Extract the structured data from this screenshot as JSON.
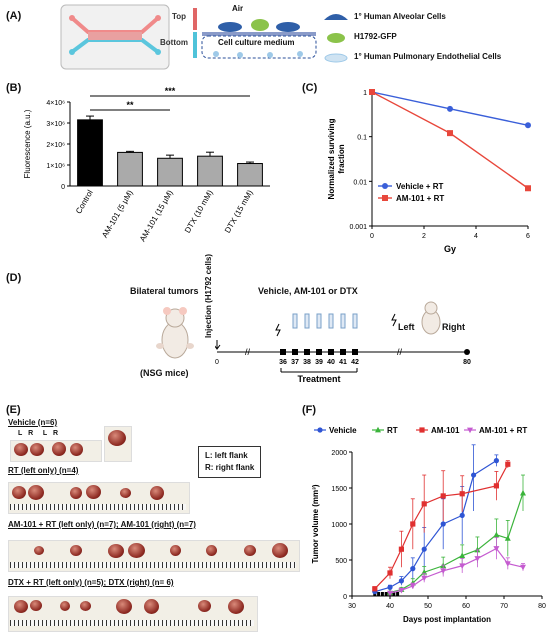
{
  "panels": {
    "A": "(A)",
    "B": "(B)",
    "C": "(C)",
    "D": "(D)",
    "E": "(E)",
    "F": "(F)"
  },
  "panelA": {
    "top": "Top",
    "bottom": "Bottom",
    "air": "Air",
    "medium": "Cell culture medium",
    "legend": [
      "1° Human Alveolar Cells",
      "H1792-GFP",
      "1° Human Pulmonary Endothelial Cells"
    ],
    "colors": {
      "top": "#e06666",
      "bottom": "#4fc3d9",
      "alveolar": "#2f5fa8",
      "gfp": "#8bc34a",
      "endo": "#9ec9e8"
    }
  },
  "chart_data": [
    {
      "id": "B",
      "type": "bar",
      "ylabel": "Fluorescence (a.u.)",
      "categories": [
        "Control",
        "AM-101 (5 μM)",
        "AM-101 (15 μM)",
        "DTX (10 mM)",
        "DTX (15 mM)"
      ],
      "values": [
        3150000,
        1600000,
        1320000,
        1420000,
        1070000
      ],
      "errors": [
        180000,
        50000,
        150000,
        190000,
        70000
      ],
      "ylim": [
        0,
        4000000
      ],
      "yticks": [
        "0",
        "1×10⁶",
        "2×10⁶",
        "3×10⁶",
        "4×10⁶"
      ],
      "significance": [
        {
          "label": "***",
          "from": 0,
          "to": 4
        },
        {
          "label": "**",
          "from": 0,
          "to": 2
        }
      ]
    },
    {
      "id": "C",
      "type": "line",
      "xlabel": "Gy",
      "ylabel": "Normalized surviving fraction",
      "yscale": "log",
      "xlim": [
        0,
        6
      ],
      "ylim": [
        0.001,
        1
      ],
      "xticks": [
        "0",
        "2",
        "4",
        "6"
      ],
      "yticks": [
        "0.001",
        "0.01",
        "0.1",
        "1"
      ],
      "x": [
        0,
        3,
        6
      ],
      "series": [
        {
          "name": "Vehicle + RT",
          "color": "#3a5fd9",
          "values": [
            1,
            0.42,
            0.18
          ]
        },
        {
          "name": "AM-101 + RT",
          "color": "#e8473b",
          "values": [
            1,
            0.12,
            0.007
          ]
        }
      ],
      "legend": "bottom-left"
    },
    {
      "id": "F",
      "type": "line",
      "xlabel": "Days post implantation",
      "ylabel": "Tumor volume (mm³)",
      "xlim": [
        30,
        80
      ],
      "ylim": [
        0,
        2000
      ],
      "xticks": [
        "30",
        "40",
        "50",
        "60",
        "70",
        "80"
      ],
      "yticks": [
        "0",
        "500",
        "1000",
        "1500",
        "2000"
      ],
      "series": [
        {
          "name": "Vehicle",
          "color": "#2f55d4",
          "marker": "circle",
          "x": [
            36,
            40,
            43,
            46,
            49,
            54,
            59,
            62,
            68
          ],
          "y": [
            60,
            120,
            210,
            380,
            650,
            1000,
            1120,
            1680,
            1880
          ],
          "err": [
            20,
            30,
            60,
            150,
            300,
            350,
            400,
            500,
            80
          ]
        },
        {
          "name": "RT",
          "color": "#3bb43b",
          "marker": "triangle",
          "x": [
            40,
            43,
            46,
            49,
            54,
            59,
            63,
            68,
            71,
            75
          ],
          "y": [
            50,
            90,
            180,
            330,
            420,
            560,
            640,
            850,
            800,
            1430
          ],
          "err": [
            15,
            30,
            60,
            80,
            120,
            150,
            180,
            220,
            250,
            250
          ]
        },
        {
          "name": "AM-101",
          "color": "#e03030",
          "marker": "square",
          "x": [
            36,
            40,
            43,
            46,
            49,
            54,
            59,
            68,
            71
          ],
          "y": [
            100,
            320,
            650,
            1000,
            1280,
            1390,
            1420,
            1530,
            1830
          ],
          "err": [
            30,
            80,
            250,
            350,
            400,
            350,
            250,
            200,
            50
          ]
        },
        {
          "name": "AM-101 + RT",
          "color": "#c55bd0",
          "marker": "triangle-down",
          "x": [
            40,
            43,
            46,
            49,
            54,
            59,
            63,
            68,
            71,
            75
          ],
          "y": [
            40,
            80,
            140,
            250,
            350,
            420,
            520,
            660,
            450,
            400
          ],
          "err": [
            10,
            20,
            40,
            60,
            80,
            100,
            120,
            150,
            80,
            50
          ]
        }
      ],
      "legend": "top"
    }
  ],
  "panelD": {
    "bilateral": "Bilateral tumors",
    "injection": "Injection (H1792 cells)",
    "treatment_title": "Vehicle, AM-101 or DTX",
    "nsg": "(NSG mice)",
    "days": [
      "0",
      "36",
      "37",
      "38",
      "39",
      "40",
      "41",
      "42",
      "80"
    ],
    "treatment": "Treatment",
    "left": "Left",
    "right": "Right"
  },
  "panelE": {
    "vehicle": "Vehicle (n=6)",
    "rt": "RT (left only) (n=4)",
    "am": "AM-101 + RT (left only) (n=7); AM-101 (right) (n=7)",
    "dtx": "DTX + RT (left only) (n=5); DTX (right) (n= 6)",
    "legend_l": "L: left flank",
    "legend_r": "R: right flank",
    "L": "L",
    "R": "R"
  }
}
